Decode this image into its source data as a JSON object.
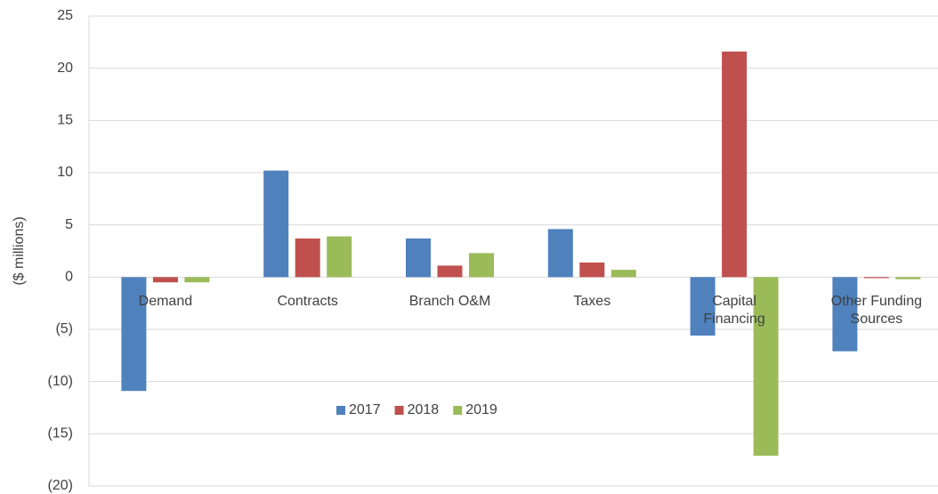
{
  "chart_data": {
    "type": "bar",
    "y_label": "($ millions)",
    "categories": [
      "Demand",
      "Contracts",
      "Branch O&M",
      "Taxes",
      "Capital Financing",
      "Other Funding Sources"
    ],
    "series": [
      {
        "name": "2017",
        "color": "#4f81bd",
        "values": [
          -10.9,
          10.2,
          3.7,
          4.6,
          -5.6,
          -7.1
        ]
      },
      {
        "name": "2018",
        "color": "#c0504d",
        "values": [
          -0.5,
          3.7,
          1.1,
          1.4,
          21.6,
          -0.1
        ]
      },
      {
        "name": "2019",
        "color": "#9bbb59",
        "values": [
          -0.5,
          3.9,
          2.3,
          0.7,
          -17.1,
          -0.2
        ]
      }
    ],
    "ylim": [
      -20,
      25
    ],
    "yticks": [
      {
        "value": -20,
        "label": "(20)"
      },
      {
        "value": -15,
        "label": "(15)"
      },
      {
        "value": -10,
        "label": "(10)"
      },
      {
        "value": -5,
        "label": "(5)"
      },
      0,
      5,
      10,
      15,
      20,
      25
    ],
    "grid": true,
    "legend": "bottom"
  }
}
